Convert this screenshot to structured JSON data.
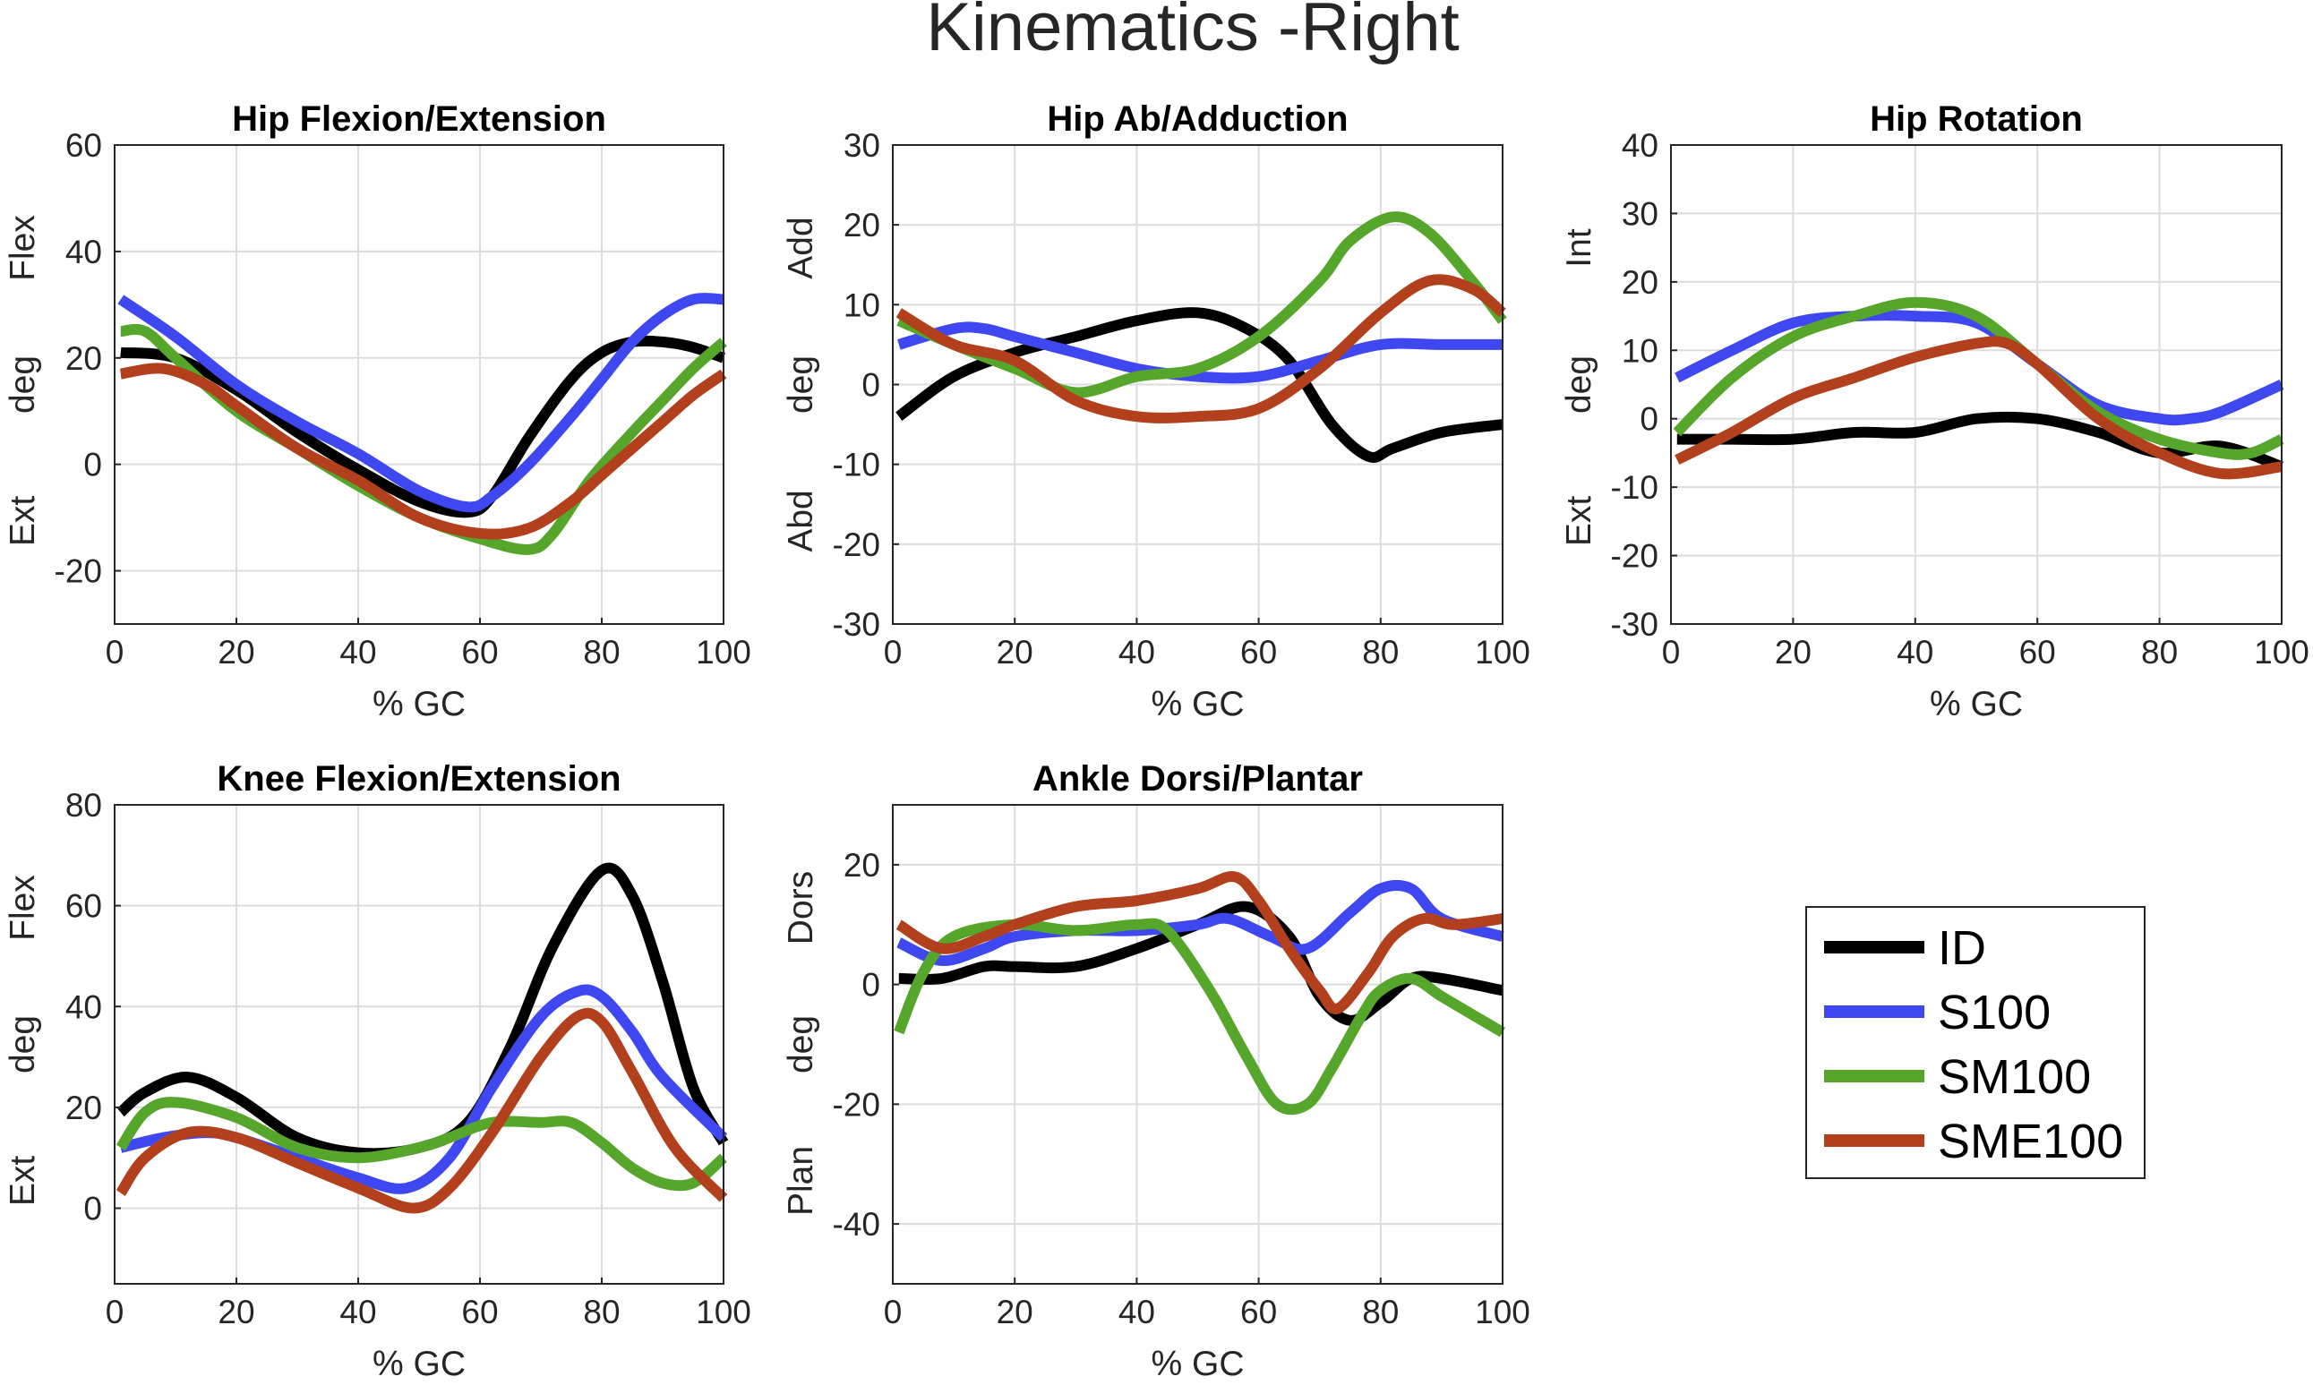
{
  "figure_title": "Kinematics -Right",
  "colors": {
    "ID": "#000000",
    "S100": "#3f48f0",
    "SM100": "#56a62c",
    "SME100": "#b3401c"
  },
  "legend": {
    "placement": "lower-right",
    "entries": [
      "ID",
      "S100",
      "SM100",
      "SME100"
    ]
  },
  "chart_data": [
    {
      "type": "line",
      "title": "Hip Flexion/Extension",
      "xlabel": "% GC",
      "ylabel": "deg",
      "ylabel_top": "Flex",
      "ylabel_bottom": "Ext",
      "xlim": [
        0,
        100
      ],
      "ylim": [
        -30,
        60
      ],
      "xticks": [
        0,
        20,
        40,
        60,
        80,
        100
      ],
      "yticks": [
        -20,
        0,
        20,
        40,
        60
      ],
      "grid": true,
      "series": [
        {
          "name": "ID",
          "x": [
            1,
            10,
            20,
            30,
            40,
            50,
            58,
            62,
            68,
            75,
            80,
            85,
            90,
            95,
            100
          ],
          "y": [
            21,
            20,
            14,
            6,
            -1,
            -7,
            -9,
            -6,
            5,
            16,
            21,
            23,
            23,
            22,
            20
          ]
        },
        {
          "name": "S100",
          "x": [
            1,
            10,
            20,
            30,
            40,
            50,
            58,
            62,
            68,
            75,
            80,
            85,
            90,
            95,
            100
          ],
          "y": [
            31,
            24,
            15,
            8,
            2,
            -5,
            -8,
            -6,
            0,
            9,
            16,
            23,
            28,
            31,
            31
          ]
        },
        {
          "name": "SM100",
          "x": [
            1,
            5,
            10,
            20,
            30,
            40,
            50,
            60,
            68,
            72,
            78,
            85,
            90,
            95,
            100
          ],
          "y": [
            25,
            25,
            20,
            10,
            3,
            -4,
            -10,
            -14,
            -16,
            -13,
            -3,
            6,
            12,
            18,
            23
          ]
        },
        {
          "name": "SME100",
          "x": [
            1,
            8,
            15,
            20,
            30,
            40,
            50,
            60,
            68,
            75,
            80,
            85,
            90,
            95,
            100
          ],
          "y": [
            17,
            18,
            15,
            11,
            3,
            -3,
            -10,
            -13,
            -12,
            -7,
            -2,
            3,
            8,
            13,
            17
          ]
        }
      ]
    },
    {
      "type": "line",
      "title": "Hip Ab/Adduction",
      "xlabel": "% GC",
      "ylabel": "deg",
      "ylabel_top": "Add",
      "ylabel_bottom": "Abd",
      "xlim": [
        0,
        100
      ],
      "ylim": [
        -30,
        30
      ],
      "xticks": [
        0,
        20,
        40,
        60,
        80,
        100
      ],
      "yticks": [
        -30,
        -20,
        -10,
        0,
        10,
        20,
        30
      ],
      "grid": true,
      "series": [
        {
          "name": "ID",
          "x": [
            1,
            10,
            20,
            30,
            40,
            50,
            58,
            65,
            72,
            78,
            82,
            90,
            100
          ],
          "y": [
            -4,
            1,
            4,
            6,
            8,
            9,
            7,
            3,
            -5,
            -9,
            -8,
            -6,
            -5
          ]
        },
        {
          "name": "S100",
          "x": [
            1,
            10,
            15,
            20,
            30,
            40,
            50,
            60,
            70,
            80,
            90,
            100
          ],
          "y": [
            5,
            7,
            7,
            6,
            4,
            2,
            1,
            1,
            3,
            5,
            5,
            5
          ]
        },
        {
          "name": "SM100",
          "x": [
            1,
            10,
            20,
            30,
            40,
            50,
            60,
            70,
            75,
            82,
            88,
            95,
            100
          ],
          "y": [
            8,
            5,
            2,
            -1,
            1,
            2,
            6,
            13,
            18,
            21,
            19,
            13,
            8
          ]
        },
        {
          "name": "SME100",
          "x": [
            1,
            10,
            20,
            30,
            40,
            50,
            60,
            70,
            80,
            88,
            95,
            100
          ],
          "y": [
            9,
            5,
            3,
            -2,
            -4,
            -4,
            -3,
            2,
            9,
            13,
            12,
            9
          ]
        }
      ]
    },
    {
      "type": "line",
      "title": "Hip Rotation",
      "xlabel": "% GC",
      "ylabel": "deg",
      "ylabel_top": "Int",
      "ylabel_bottom": "Ext",
      "xlim": [
        0,
        100
      ],
      "ylim": [
        -30,
        40
      ],
      "xticks": [
        0,
        20,
        40,
        60,
        80,
        100
      ],
      "yticks": [
        -30,
        -20,
        -10,
        0,
        10,
        20,
        30,
        40
      ],
      "grid": true,
      "series": [
        {
          "name": "ID",
          "x": [
            1,
            10,
            20,
            30,
            40,
            50,
            60,
            70,
            80,
            90,
            100
          ],
          "y": [
            -3,
            -3,
            -3,
            -2,
            -2,
            0,
            0,
            -2,
            -5,
            -4,
            -7
          ]
        },
        {
          "name": "S100",
          "x": [
            1,
            10,
            20,
            30,
            40,
            50,
            60,
            70,
            80,
            85,
            90,
            100
          ],
          "y": [
            6,
            10,
            14,
            15,
            15,
            14,
            8,
            2,
            0,
            0,
            1,
            5
          ]
        },
        {
          "name": "SM100",
          "x": [
            1,
            10,
            20,
            30,
            40,
            50,
            60,
            70,
            80,
            90,
            95,
            100
          ],
          "y": [
            -2,
            6,
            12,
            15,
            17,
            15,
            8,
            1,
            -3,
            -5,
            -5,
            -3
          ]
        },
        {
          "name": "SME100",
          "x": [
            1,
            10,
            20,
            30,
            40,
            50,
            55,
            60,
            70,
            80,
            90,
            100
          ],
          "y": [
            -6,
            -2,
            3,
            6,
            9,
            11,
            11,
            8,
            0,
            -5,
            -8,
            -7
          ]
        }
      ]
    },
    {
      "type": "line",
      "title": "Knee Flexion/Extension",
      "xlabel": "% GC",
      "ylabel": "deg",
      "ylabel_top": "Flex",
      "ylabel_bottom": "Ext",
      "xlim": [
        0,
        100
      ],
      "ylim": [
        -15,
        80
      ],
      "xticks": [
        0,
        20,
        40,
        60,
        80,
        100
      ],
      "yticks": [
        0,
        20,
        40,
        60,
        80
      ],
      "grid": true,
      "series": [
        {
          "name": "ID",
          "x": [
            1,
            5,
            12,
            20,
            30,
            40,
            50,
            58,
            65,
            72,
            80,
            85,
            90,
            95,
            100
          ],
          "y": [
            19,
            23,
            26,
            22,
            14,
            11,
            12,
            17,
            32,
            52,
            67,
            62,
            45,
            24,
            13
          ]
        },
        {
          "name": "S100",
          "x": [
            1,
            8,
            15,
            20,
            30,
            40,
            48,
            55,
            62,
            70,
            76,
            80,
            85,
            90,
            100
          ],
          "y": [
            12,
            14,
            15,
            14,
            10,
            6,
            4,
            10,
            24,
            38,
            43,
            42,
            35,
            26,
            14
          ]
        },
        {
          "name": "SM100",
          "x": [
            1,
            5,
            10,
            20,
            30,
            40,
            50,
            55,
            62,
            70,
            75,
            80,
            85,
            90,
            95,
            100
          ],
          "y": [
            12,
            19,
            21,
            18,
            12,
            10,
            12,
            14,
            17,
            17,
            17,
            13,
            8,
            5,
            5,
            10
          ]
        },
        {
          "name": "SME100",
          "x": [
            1,
            5,
            12,
            20,
            30,
            40,
            49,
            55,
            62,
            70,
            76,
            80,
            85,
            92,
            100
          ],
          "y": [
            3,
            10,
            15,
            14,
            9,
            4,
            0,
            4,
            15,
            30,
            38,
            37,
            27,
            12,
            2
          ]
        }
      ]
    },
    {
      "type": "line",
      "title": "Ankle Dorsi/Plantar",
      "xlabel": "% GC",
      "ylabel": "deg",
      "ylabel_top": "Dors",
      "ylabel_bottom": "Plan",
      "xlim": [
        0,
        100
      ],
      "ylim": [
        -50,
        30
      ],
      "xticks": [
        0,
        20,
        40,
        60,
        80,
        100
      ],
      "yticks": [
        -40,
        -20,
        0,
        20
      ],
      "grid": true,
      "series": [
        {
          "name": "ID",
          "x": [
            1,
            8,
            15,
            20,
            30,
            40,
            50,
            58,
            65,
            70,
            75,
            80,
            85,
            90,
            100
          ],
          "y": [
            1,
            1,
            3,
            3,
            3,
            6,
            10,
            13,
            8,
            -2,
            -6,
            -3,
            1,
            1,
            -1
          ]
        },
        {
          "name": "S100",
          "x": [
            1,
            8,
            15,
            20,
            30,
            40,
            50,
            55,
            62,
            68,
            75,
            80,
            85,
            90,
            100
          ],
          "y": [
            7,
            4,
            6,
            8,
            9,
            9,
            10,
            11,
            8,
            6,
            12,
            16,
            16,
            11,
            8
          ]
        },
        {
          "name": "SM100",
          "x": [
            1,
            5,
            10,
            20,
            30,
            40,
            45,
            52,
            58,
            63,
            68,
            72,
            77,
            80,
            85,
            90,
            95,
            100
          ],
          "y": [
            -8,
            2,
            8,
            10,
            9,
            10,
            9,
            -1,
            -12,
            -20,
            -20,
            -14,
            -5,
            -1,
            1,
            -2,
            -5,
            -8
          ]
        },
        {
          "name": "SME100",
          "x": [
            1,
            8,
            15,
            20,
            30,
            40,
            50,
            56,
            60,
            65,
            70,
            73,
            78,
            82,
            87,
            92,
            100
          ],
          "y": [
            10,
            6,
            8,
            10,
            13,
            14,
            16,
            18,
            14,
            6,
            -1,
            -4,
            2,
            8,
            11,
            10,
            11
          ]
        }
      ]
    }
  ]
}
